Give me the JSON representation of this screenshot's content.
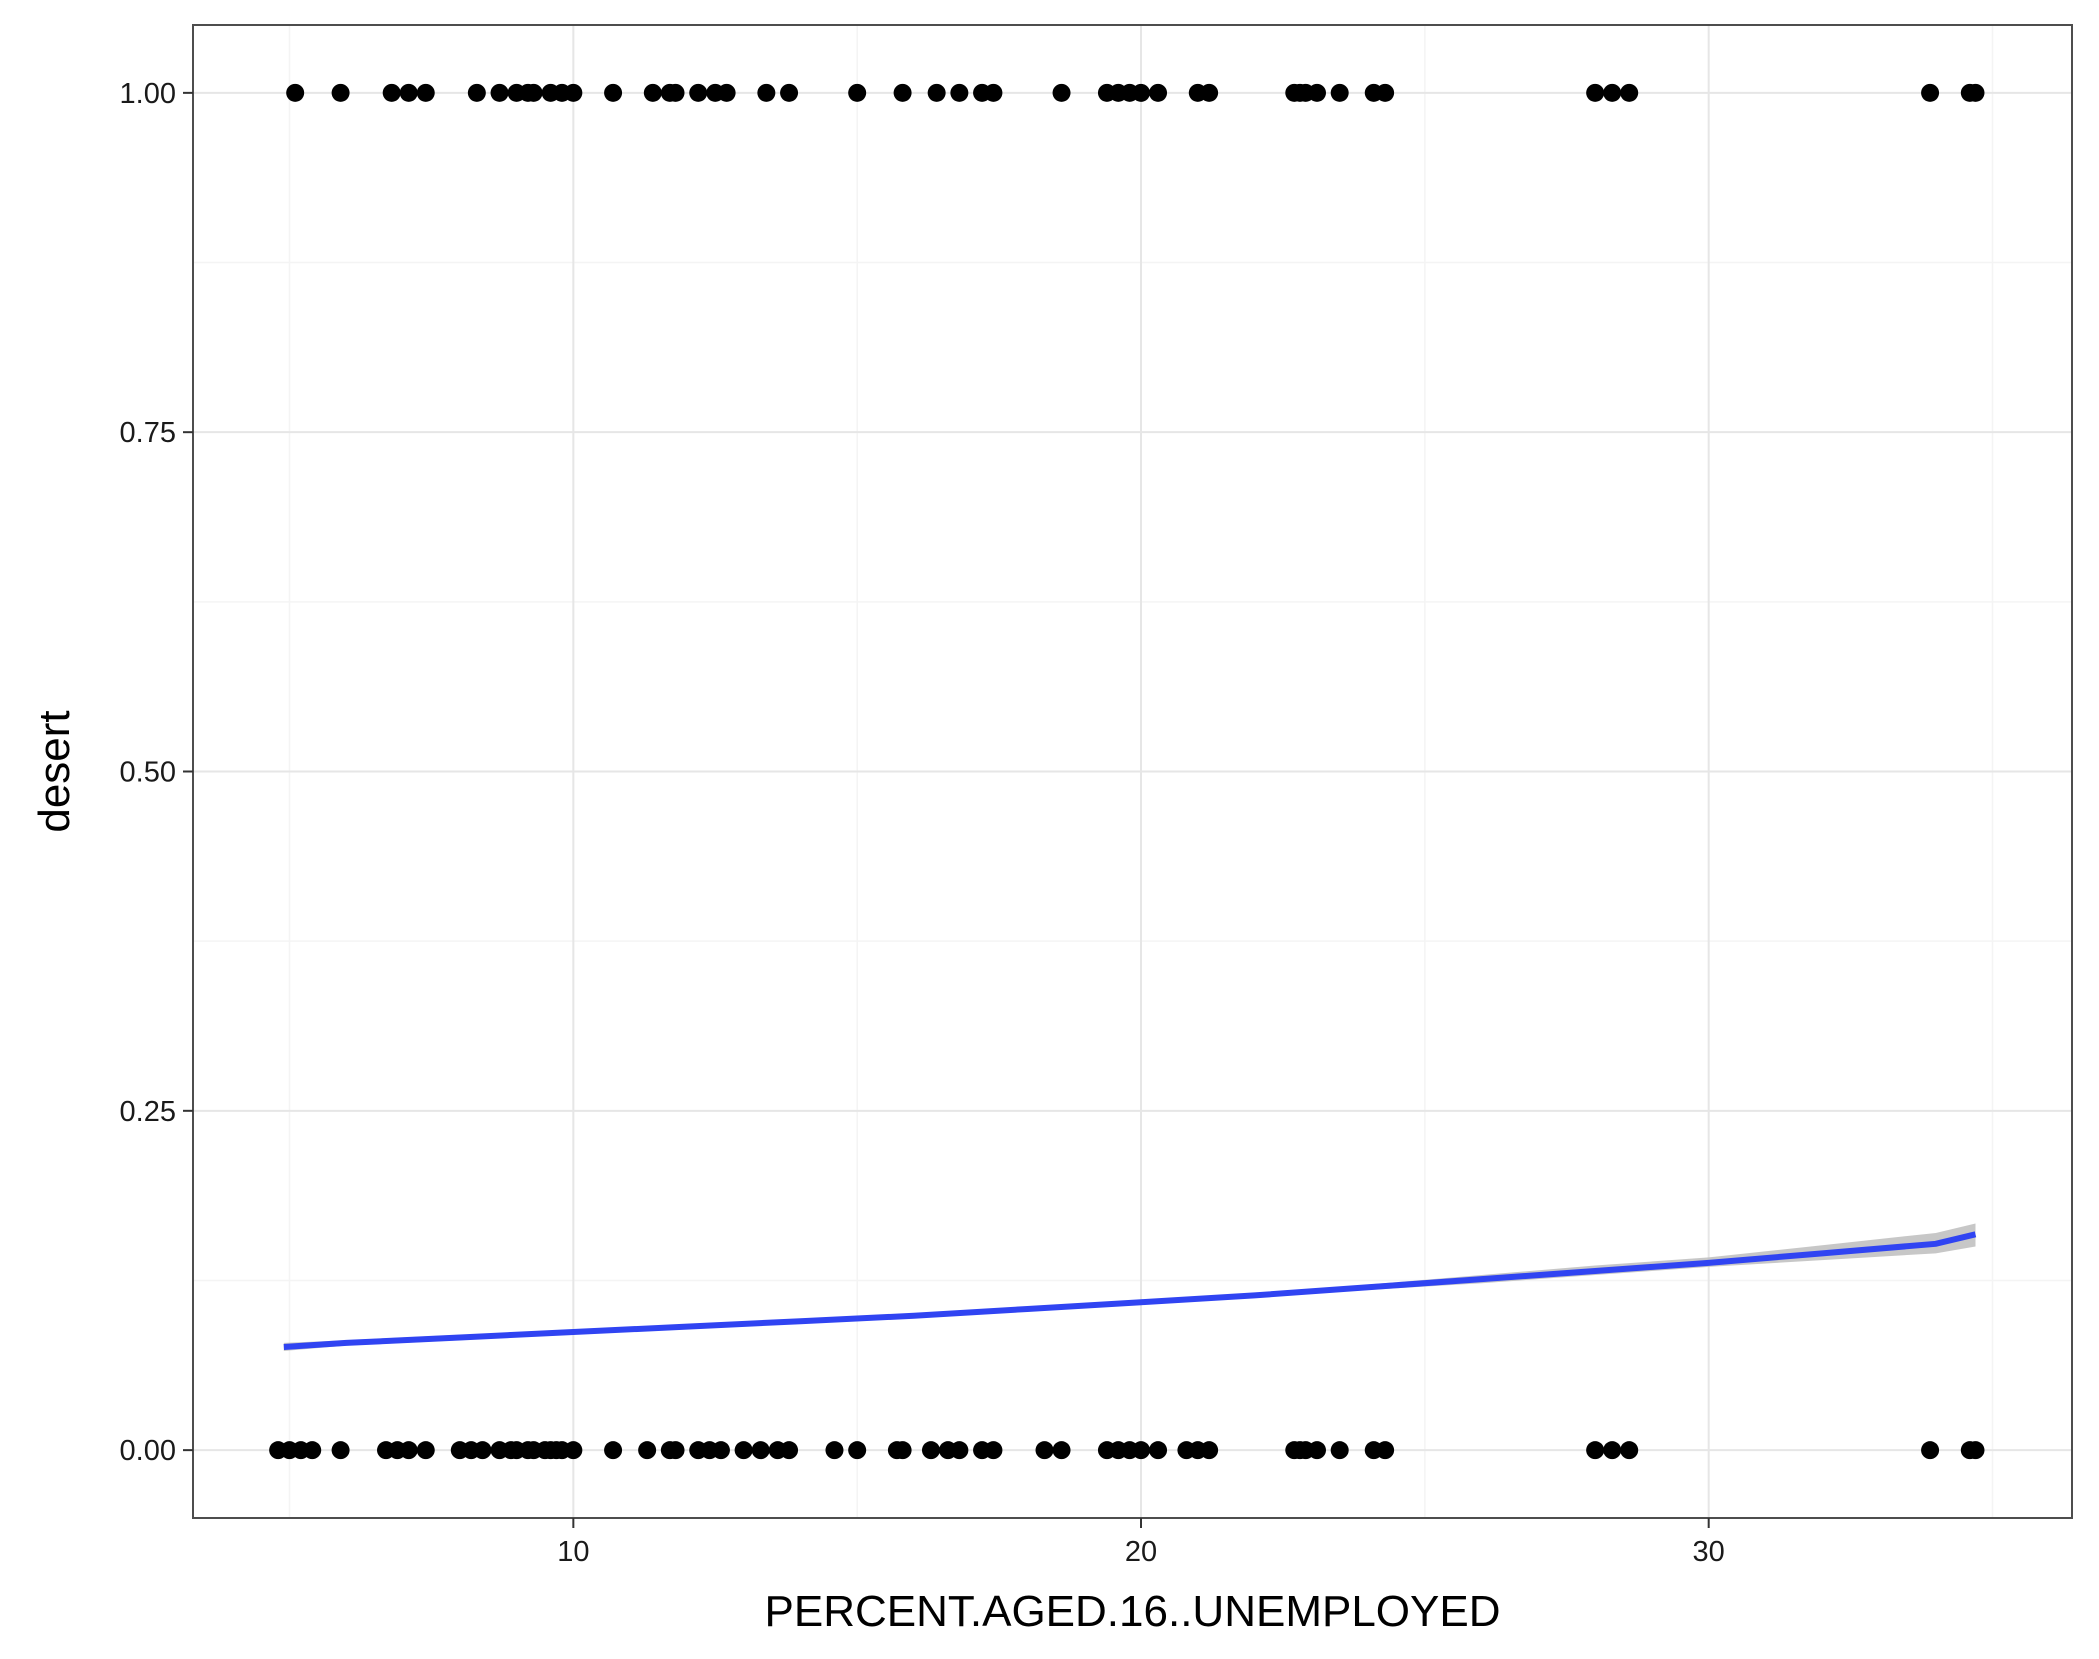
{
  "chart_data": {
    "type": "scatter",
    "title": "",
    "xlabel": "PERCENT.AGED.16..UNEMPLOYED",
    "ylabel": "desert",
    "xlim": [
      3.3,
      36.4
    ],
    "ylim": [
      -0.05,
      1.05
    ],
    "x_ticks": [
      {
        "value": 10,
        "label": "10"
      },
      {
        "value": 20,
        "label": "20"
      },
      {
        "value": 30,
        "label": "30"
      }
    ],
    "y_ticks": [
      {
        "value": 0,
        "label": "0.00"
      },
      {
        "value": 0.25,
        "label": "0.25"
      },
      {
        "value": 0.5,
        "label": "0.50"
      },
      {
        "value": 0.75,
        "label": "0.75"
      },
      {
        "value": 1,
        "label": "1.00"
      }
    ],
    "x_minor": [
      5,
      15,
      25,
      35
    ],
    "y_minor": [
      0.125,
      0.375,
      0.625,
      0.875
    ],
    "grid": true,
    "legend": "none",
    "colors": {
      "points": "#000000",
      "fit_line": "#3044f2",
      "ci_band": "#bdbdbd",
      "grid_major": "#e6e6e6",
      "grid_minor": "#f4f4f4",
      "panel_border": "#4d4d4d"
    },
    "series": [
      {
        "type": "points",
        "y": 1,
        "x": [
          5.1,
          5.9,
          6.8,
          7.1,
          7.4,
          8.3,
          8.7,
          9.0,
          9.2,
          9.3,
          9.6,
          9.8,
          10.0,
          10.7,
          11.4,
          11.7,
          11.8,
          12.2,
          12.5,
          12.7,
          13.4,
          13.8,
          15.0,
          15.8,
          16.4,
          16.8,
          17.2,
          17.4,
          18.6,
          19.4,
          19.6,
          19.8,
          20.0,
          20.3,
          21.0,
          21.2,
          22.7,
          22.8,
          22.9,
          23.1,
          23.5,
          24.1,
          24.3,
          28.0,
          28.3,
          28.6,
          33.9,
          34.6,
          34.7
        ],
        "note_free": true
      },
      {
        "type": "points",
        "y": 0,
        "x": [
          4.8,
          5.0,
          5.2,
          5.4,
          5.9,
          6.7,
          6.9,
          7.1,
          7.4,
          8.0,
          8.2,
          8.4,
          8.7,
          8.9,
          9.0,
          9.2,
          9.3,
          9.5,
          9.6,
          9.7,
          9.8,
          10.0,
          10.7,
          11.3,
          11.7,
          11.8,
          12.2,
          12.4,
          12.6,
          13.0,
          13.3,
          13.6,
          13.8,
          14.6,
          15.0,
          15.7,
          15.8,
          16.3,
          16.6,
          16.8,
          17.2,
          17.4,
          18.3,
          18.6,
          19.4,
          19.6,
          19.8,
          20.0,
          20.3,
          20.8,
          21.0,
          21.2,
          22.7,
          22.8,
          22.9,
          23.1,
          23.5,
          24.1,
          24.3,
          28.0,
          28.3,
          28.6,
          33.9,
          34.6,
          34.7
        ]
      },
      {
        "type": "fit",
        "method": "logistic",
        "x": [
          4.9,
          6,
          8,
          10,
          12,
          14,
          16,
          18,
          20,
          22,
          24,
          26,
          28,
          30,
          32,
          34,
          34.7
        ],
        "y": [
          0.076,
          0.079,
          0.083,
          0.087,
          0.091,
          0.095,
          0.099,
          0.104,
          0.109,
          0.114,
          0.12,
          0.126,
          0.132,
          0.138,
          0.145,
          0.152,
          0.159
        ],
        "ci_low": [
          0.073,
          0.077,
          0.081,
          0.086,
          0.09,
          0.094,
          0.098,
          0.103,
          0.108,
          0.113,
          0.118,
          0.123,
          0.129,
          0.135,
          0.14,
          0.145,
          0.15
        ],
        "ci_high": [
          0.079,
          0.081,
          0.085,
          0.088,
          0.092,
          0.096,
          0.1,
          0.105,
          0.11,
          0.115,
          0.122,
          0.129,
          0.136,
          0.142,
          0.151,
          0.16,
          0.167
        ]
      }
    ]
  }
}
